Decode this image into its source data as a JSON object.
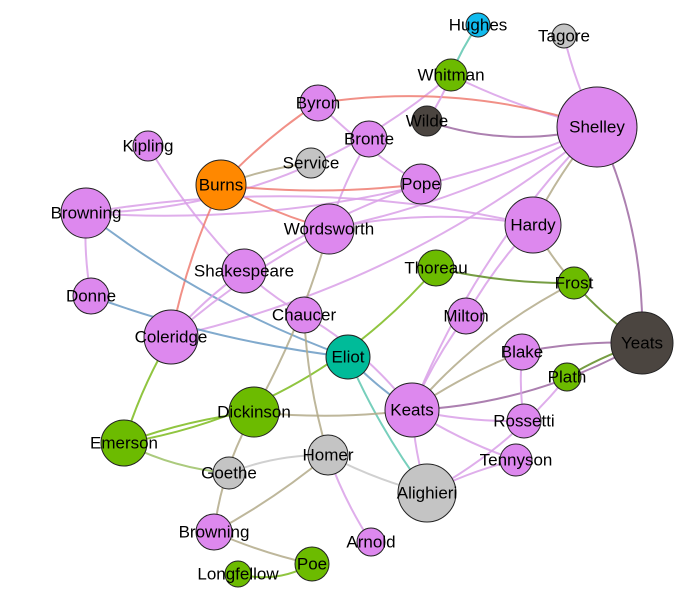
{
  "colors": {
    "violet": "#dd88ee",
    "green": "#6cbb00",
    "dark": "#4b4540",
    "gray": "#c4c4c4",
    "orange": "#ff8800",
    "teal": "#00bb99",
    "cyan": "#11bbee",
    "edge_violet": "#d9a0e8",
    "edge_purple": "#9d6aa2",
    "edge_olive": "#b3aa8a",
    "edge_green": "#7dbb1f",
    "edge_darkgreen": "#5e8c22",
    "edge_red": "#ee7d72",
    "edge_blue": "#6b9bc4",
    "edge_teal": "#5fc7b0",
    "edge_gray": "#c8c8c8",
    "edge_green2": "#9cc166"
  },
  "nodes": [
    {
      "id": "hughes",
      "label": "Hughes",
      "color": "cyan"
    },
    {
      "id": "tagore",
      "label": "Tagore",
      "color": "gray"
    },
    {
      "id": "whitman",
      "label": "Whitman",
      "color": "green"
    },
    {
      "id": "byron",
      "label": "Byron",
      "color": "violet"
    },
    {
      "id": "wilde",
      "label": "Wilde",
      "color": "dark"
    },
    {
      "id": "shelley",
      "label": "Shelley",
      "color": "violet"
    },
    {
      "id": "bronte",
      "label": "Bronte",
      "color": "violet"
    },
    {
      "id": "kipling",
      "label": "Kipling",
      "color": "violet"
    },
    {
      "id": "service",
      "label": "Service",
      "color": "gray"
    },
    {
      "id": "burns",
      "label": "Burns",
      "color": "orange"
    },
    {
      "id": "pope",
      "label": "Pope",
      "color": "violet"
    },
    {
      "id": "browning1",
      "label": "Browning",
      "color": "violet"
    },
    {
      "id": "wordsworth",
      "label": "Wordsworth",
      "color": "violet"
    },
    {
      "id": "hardy",
      "label": "Hardy",
      "color": "violet"
    },
    {
      "id": "shakespeare",
      "label": "Shakespeare",
      "color": "violet"
    },
    {
      "id": "thoreau",
      "label": "Thoreau",
      "color": "green"
    },
    {
      "id": "frost",
      "label": "Frost",
      "color": "green"
    },
    {
      "id": "donne",
      "label": "Donne",
      "color": "violet"
    },
    {
      "id": "chaucer",
      "label": "Chaucer",
      "color": "violet"
    },
    {
      "id": "milton",
      "label": "Milton",
      "color": "violet"
    },
    {
      "id": "coleridge",
      "label": "Coleridge",
      "color": "violet"
    },
    {
      "id": "eliot",
      "label": "Eliot",
      "color": "teal"
    },
    {
      "id": "yeats",
      "label": "Yeats",
      "color": "dark"
    },
    {
      "id": "blake",
      "label": "Blake",
      "color": "violet"
    },
    {
      "id": "plath",
      "label": "Plath",
      "color": "green"
    },
    {
      "id": "dickinson",
      "label": "Dickinson",
      "color": "green"
    },
    {
      "id": "keats",
      "label": "Keats",
      "color": "violet"
    },
    {
      "id": "rossetti",
      "label": "Rossetti",
      "color": "violet"
    },
    {
      "id": "emerson",
      "label": "Emerson",
      "color": "green"
    },
    {
      "id": "homer",
      "label": "Homer",
      "color": "gray"
    },
    {
      "id": "tennyson",
      "label": "Tennyson",
      "color": "violet"
    },
    {
      "id": "goethe",
      "label": "Goethe",
      "color": "gray"
    },
    {
      "id": "alighieri",
      "label": "Alighieri",
      "color": "gray"
    },
    {
      "id": "browning2",
      "label": "Browning",
      "color": "violet"
    },
    {
      "id": "arnold",
      "label": "Arnold",
      "color": "violet"
    },
    {
      "id": "poe",
      "label": "Poe",
      "color": "green"
    },
    {
      "id": "longfellow",
      "label": "Longfellow",
      "color": "green"
    }
  ],
  "edges": [
    {
      "source": "hughes",
      "target": "whitman",
      "color": "edge_teal"
    },
    {
      "source": "tagore",
      "target": "shelley",
      "color": "edge_violet"
    },
    {
      "source": "whitman",
      "target": "shelley",
      "color": "edge_violet"
    },
    {
      "source": "whitman",
      "target": "browning1",
      "color": "edge_violet"
    },
    {
      "source": "byron",
      "target": "shelley",
      "color": "edge_red"
    },
    {
      "source": "byron",
      "target": "burns",
      "color": "edge_red"
    },
    {
      "source": "byron",
      "target": "pope",
      "color": "edge_violet"
    },
    {
      "source": "wilde",
      "target": "shelley",
      "color": "edge_purple"
    },
    {
      "source": "wilde",
      "target": "whitman",
      "color": "edge_violet"
    },
    {
      "source": "bronte",
      "target": "wordsworth",
      "color": "edge_violet"
    },
    {
      "source": "shelley",
      "target": "yeats",
      "color": "edge_purple"
    },
    {
      "source": "shelley",
      "target": "hardy",
      "color": "edge_olive"
    },
    {
      "source": "shelley",
      "target": "wordsworth",
      "color": "edge_violet"
    },
    {
      "source": "shelley",
      "target": "keats",
      "color": "edge_violet"
    },
    {
      "source": "shelley",
      "target": "browning1",
      "color": "edge_violet"
    },
    {
      "source": "shelley",
      "target": "coleridge",
      "color": "edge_violet"
    },
    {
      "source": "kipling",
      "target": "shakespeare",
      "color": "edge_violet"
    },
    {
      "source": "burns",
      "target": "wordsworth",
      "color": "edge_red"
    },
    {
      "source": "burns",
      "target": "coleridge",
      "color": "edge_red"
    },
    {
      "source": "burns",
      "target": "pope",
      "color": "edge_red"
    },
    {
      "source": "service",
      "target": "burns",
      "color": "edge_olive"
    },
    {
      "source": "browning1",
      "target": "eliot",
      "color": "edge_blue"
    },
    {
      "source": "browning1",
      "target": "donne",
      "color": "edge_violet"
    },
    {
      "source": "browning1",
      "target": "hardy",
      "color": "edge_violet"
    },
    {
      "source": "wordsworth",
      "target": "coleridge",
      "color": "edge_violet"
    },
    {
      "source": "wordsworth",
      "target": "dickinson",
      "color": "edge_olive"
    },
    {
      "source": "wordsworth",
      "target": "hardy",
      "color": "edge_violet"
    },
    {
      "source": "pope",
      "target": "shakespeare",
      "color": "edge_violet"
    },
    {
      "source": "hardy",
      "target": "frost",
      "color": "edge_olive"
    },
    {
      "source": "hardy",
      "target": "milton",
      "color": "edge_violet"
    },
    {
      "source": "thoreau",
      "target": "frost",
      "color": "edge_darkgreen"
    },
    {
      "source": "thoreau",
      "target": "emerson",
      "color": "edge_green"
    },
    {
      "source": "frost",
      "target": "yeats",
      "color": "edge_darkgreen"
    },
    {
      "source": "frost",
      "target": "keats",
      "color": "edge_olive"
    },
    {
      "source": "donne",
      "target": "eliot",
      "color": "edge_blue"
    },
    {
      "source": "shakespeare",
      "target": "coleridge",
      "color": "edge_violet"
    },
    {
      "source": "shakespeare",
      "target": "chaucer",
      "color": "edge_violet"
    },
    {
      "source": "chaucer",
      "target": "homer",
      "color": "edge_olive"
    },
    {
      "source": "chaucer",
      "target": "keats",
      "color": "edge_violet"
    },
    {
      "source": "milton",
      "target": "keats",
      "color": "edge_violet"
    },
    {
      "source": "coleridge",
      "target": "emerson",
      "color": "edge_green"
    },
    {
      "source": "eliot",
      "target": "keats",
      "color": "edge_blue"
    },
    {
      "source": "eliot",
      "target": "alighieri",
      "color": "edge_teal"
    },
    {
      "source": "yeats",
      "target": "keats",
      "color": "edge_purple"
    },
    {
      "source": "yeats",
      "target": "blake",
      "color": "edge_purple"
    },
    {
      "source": "yeats",
      "target": "plath",
      "color": "edge_darkgreen"
    },
    {
      "source": "blake",
      "target": "keats",
      "color": "edge_olive"
    },
    {
      "source": "blake",
      "target": "rossetti",
      "color": "edge_violet"
    },
    {
      "source": "plath",
      "target": "alighieri",
      "color": "edge_violet"
    },
    {
      "source": "dickinson",
      "target": "emerson",
      "color": "edge_green"
    },
    {
      "source": "dickinson",
      "target": "browning2",
      "color": "edge_olive"
    },
    {
      "source": "keats",
      "target": "rossetti",
      "color": "edge_violet"
    },
    {
      "source": "keats",
      "target": "tennyson",
      "color": "edge_violet"
    },
    {
      "source": "keats",
      "target": "dickinson",
      "color": "edge_olive"
    },
    {
      "source": "keats",
      "target": "alighieri",
      "color": "edge_violet"
    },
    {
      "source": "emerson",
      "target": "goethe",
      "color": "edge_green2"
    },
    {
      "source": "homer",
      "target": "goethe",
      "color": "edge_gray"
    },
    {
      "source": "homer",
      "target": "browning2",
      "color": "edge_olive"
    },
    {
      "source": "homer",
      "target": "alighieri",
      "color": "edge_gray"
    },
    {
      "source": "homer",
      "target": "arnold",
      "color": "edge_violet"
    },
    {
      "source": "tennyson",
      "target": "alighieri",
      "color": "edge_violet"
    },
    {
      "source": "browning2",
      "target": "poe",
      "color": "edge_olive"
    },
    {
      "source": "poe",
      "target": "longfellow",
      "color": "edge_green"
    }
  ]
}
